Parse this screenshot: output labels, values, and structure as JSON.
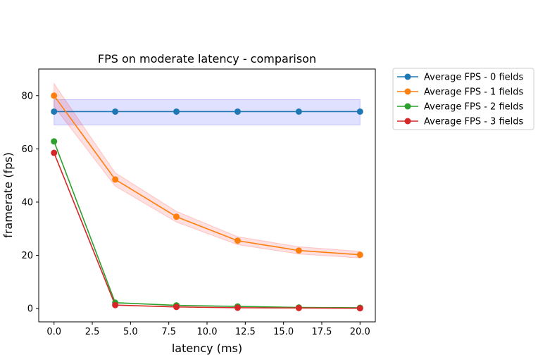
{
  "chart_data": {
    "type": "line",
    "title": "FPS on moderate latency - comparison",
    "xlabel": "latency (ms)",
    "ylabel": "framerate (fps)",
    "xlim": [
      -1.0,
      21.0
    ],
    "ylim": [
      -5,
      90
    ],
    "xticks": [
      0.0,
      2.5,
      5.0,
      7.5,
      10.0,
      12.5,
      15.0,
      17.5,
      20.0
    ],
    "xtick_labels": [
      "0.0",
      "2.5",
      "5.0",
      "7.5",
      "10.0",
      "12.5",
      "15.0",
      "17.5",
      "20.0"
    ],
    "yticks": [
      0,
      20,
      40,
      60,
      80
    ],
    "ytick_labels": [
      "0",
      "20",
      "40",
      "60",
      "80"
    ],
    "grid": false,
    "legend_position": "outside-top-right",
    "x": [
      0,
      4,
      8,
      12,
      16,
      20
    ],
    "series": [
      {
        "name": "Average FPS - 0 fields",
        "color": "#1f77b4",
        "band_color": "#0000ff",
        "values": [
          74.0,
          74.0,
          74.0,
          74.0,
          74.0,
          74.0
        ],
        "lower": [
          69.0,
          69.0,
          69.0,
          69.0,
          69.0,
          69.0
        ],
        "upper": [
          78.5,
          78.5,
          78.5,
          78.5,
          78.5,
          78.5
        ]
      },
      {
        "name": "Average FPS - 1 fields",
        "color": "#ff7f0e",
        "band_color": "#ff0000",
        "values": [
          80.0,
          48.5,
          34.5,
          25.5,
          21.8,
          20.2
        ],
        "lower": [
          76.0,
          46.0,
          32.5,
          24.0,
          20.5,
          19.0
        ],
        "upper": [
          84.5,
          51.0,
          36.5,
          27.0,
          23.2,
          21.5
        ]
      },
      {
        "name": "Average FPS - 2 fields",
        "color": "#2ca02c",
        "values": [
          62.8,
          2.2,
          1.2,
          0.8,
          0.4,
          0.3
        ]
      },
      {
        "name": "Average FPS - 3 fields",
        "color": "#d62728",
        "values": [
          58.5,
          1.3,
          0.6,
          0.3,
          0.2,
          0.1
        ]
      }
    ]
  }
}
